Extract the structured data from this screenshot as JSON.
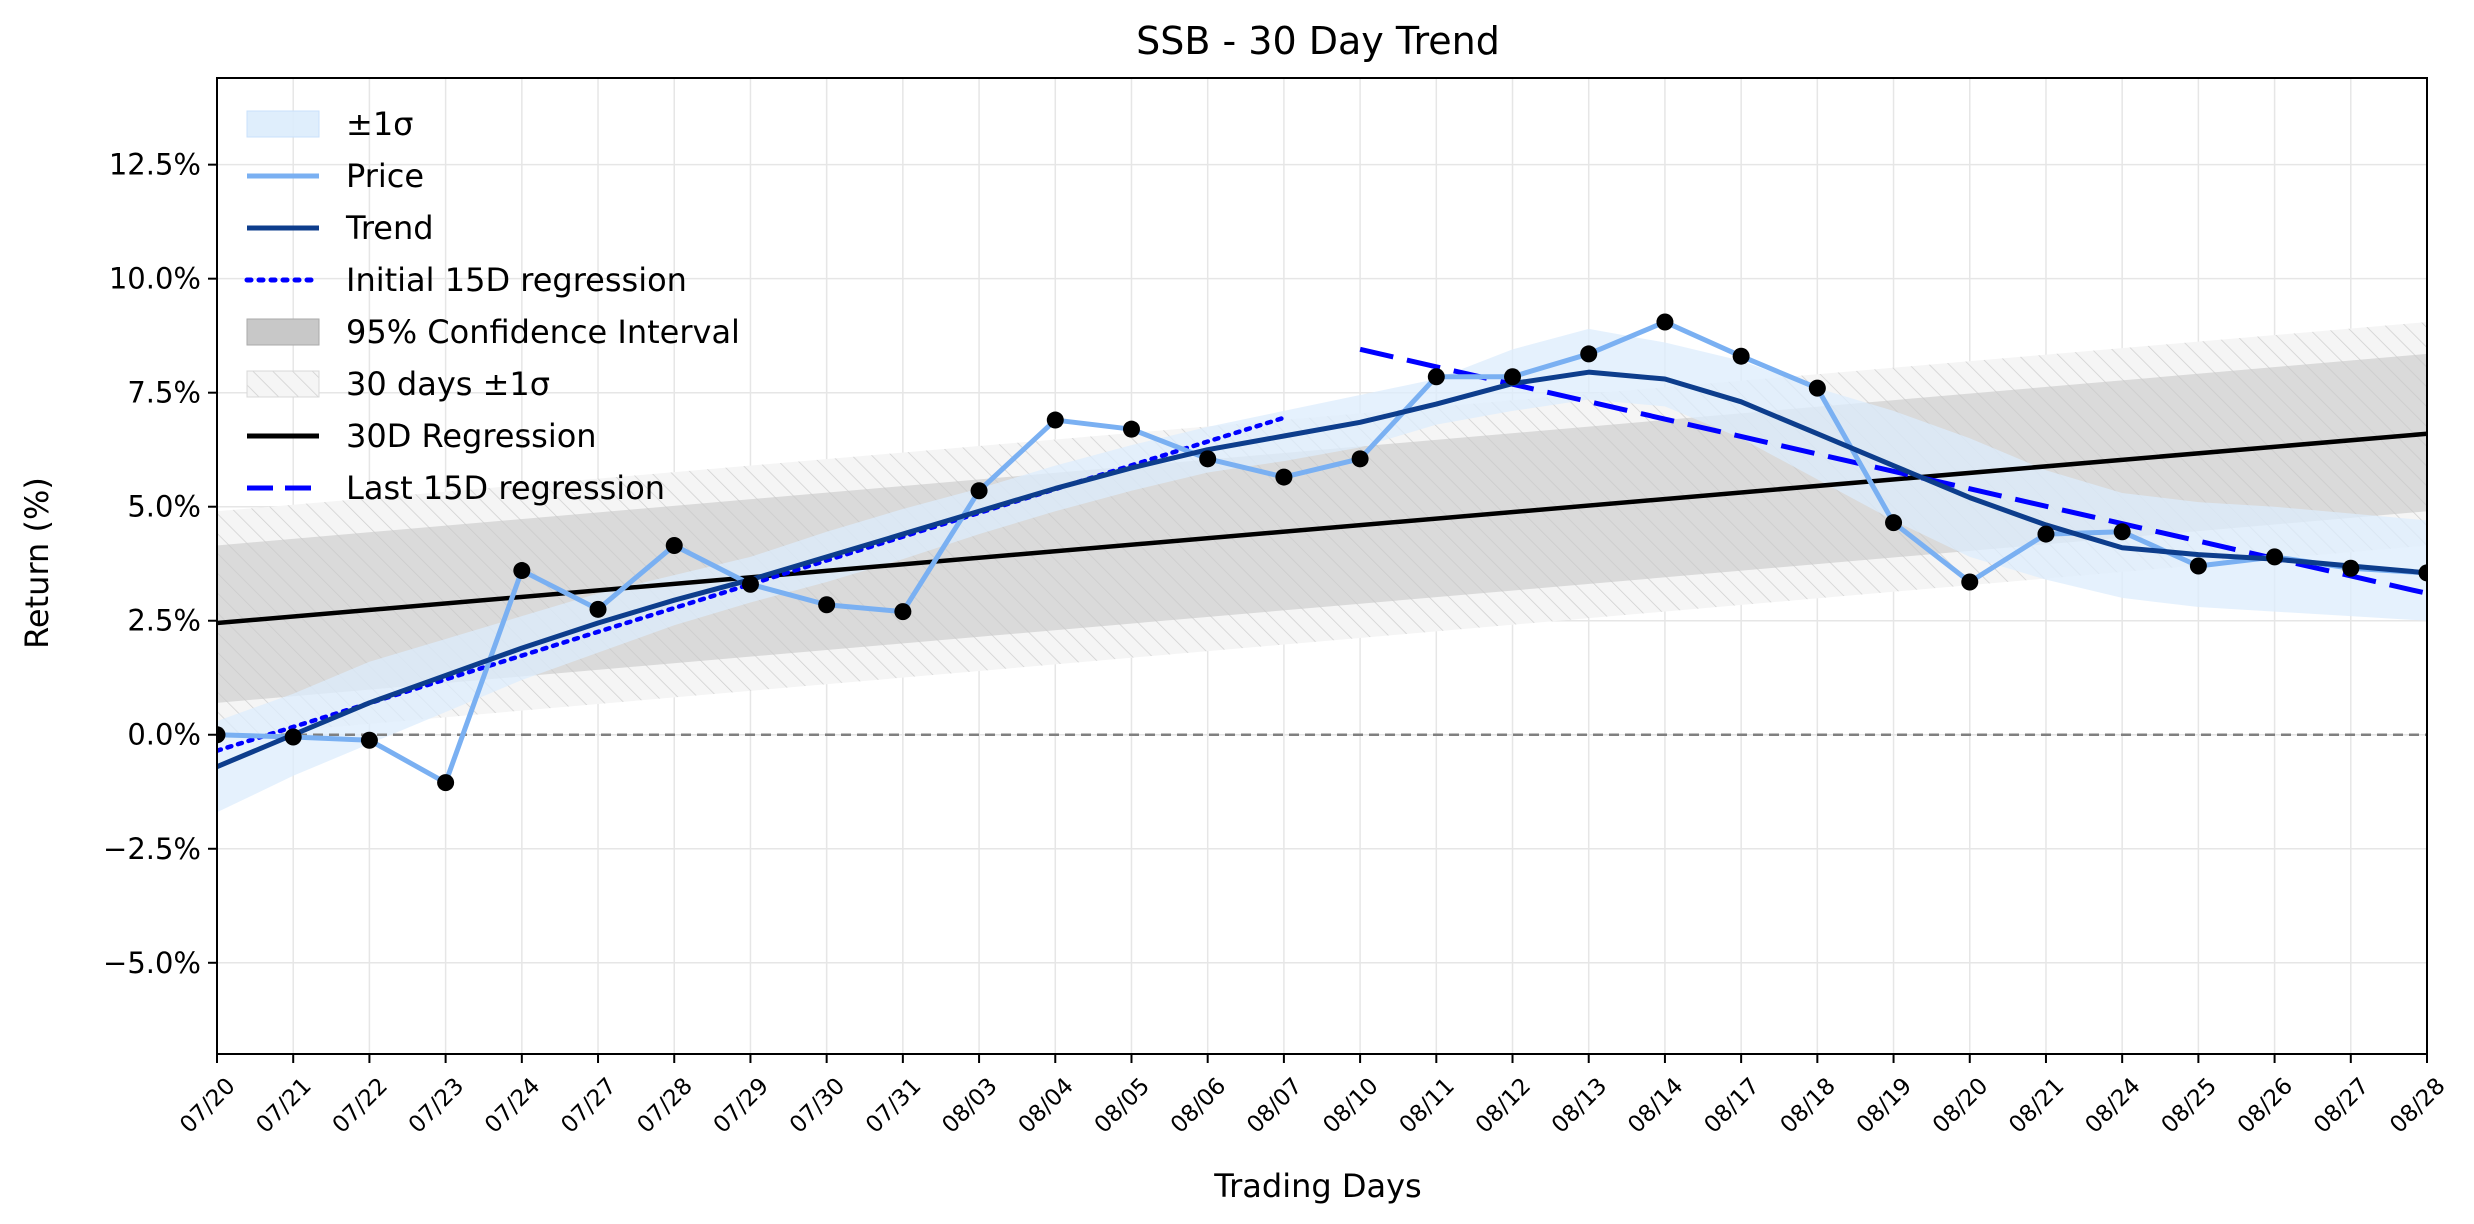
{
  "chart_data": {
    "type": "line",
    "title": "SSB - 30 Day Trend",
    "xlabel": "Trading Days",
    "ylabel": "Return (%)",
    "ylim": [
      -7.0,
      14.4
    ],
    "yticks": [
      -5.0,
      -2.5,
      0.0,
      2.5,
      5.0,
      7.5,
      10.0,
      12.5
    ],
    "ytick_labels": [
      "−5.0%",
      "−2.5%",
      "0.0%",
      "2.5%",
      "5.0%",
      "7.5%",
      "10.0%",
      "12.5%"
    ],
    "categories": [
      "07/20",
      "07/21",
      "07/22",
      "07/23",
      "07/24",
      "07/27",
      "07/28",
      "07/29",
      "07/30",
      "07/31",
      "08/03",
      "08/04",
      "08/05",
      "08/06",
      "08/07",
      "08/10",
      "08/11",
      "08/12",
      "08/13",
      "08/14",
      "08/17",
      "08/18",
      "08/19",
      "08/20",
      "08/21",
      "08/24",
      "08/25",
      "08/26",
      "08/27",
      "08/28"
    ],
    "grid": true,
    "legend_position": "top-left",
    "zero_line": {
      "value": 0.0,
      "style": "dashed",
      "color": "#808080"
    },
    "series": [
      {
        "name": "Price",
        "type": "line",
        "color": "#7ab0f2",
        "markers": true,
        "marker_color": "#000000",
        "values": [
          0.0,
          -0.05,
          -0.12,
          -1.05,
          3.6,
          2.75,
          4.15,
          3.3,
          2.85,
          2.7,
          5.35,
          6.9,
          6.7,
          6.05,
          5.65,
          6.05,
          7.85,
          7.85,
          8.35,
          9.05,
          8.3,
          7.6,
          4.65,
          3.35,
          4.4,
          4.45,
          3.7,
          3.9,
          3.65,
          3.55
        ]
      },
      {
        "name": "Trend",
        "type": "line",
        "color": "#0d3d8c",
        "values": [
          -0.7,
          0.0,
          0.7,
          1.3,
          1.9,
          2.45,
          2.95,
          3.4,
          3.9,
          4.4,
          4.9,
          5.4,
          5.85,
          6.25,
          6.55,
          6.85,
          7.25,
          7.7,
          7.95,
          7.8,
          7.3,
          6.6,
          5.9,
          5.2,
          4.6,
          4.1,
          3.95,
          3.85,
          3.7,
          3.55
        ]
      },
      {
        "name": "±1σ",
        "type": "band",
        "color": "#dcecfc",
        "lower": [
          -1.7,
          -0.9,
          -0.2,
          0.5,
          1.2,
          1.8,
          2.4,
          2.9,
          3.35,
          3.85,
          4.4,
          4.9,
          5.35,
          5.75,
          6.0,
          6.3,
          6.8,
          7.1,
          7.35,
          7.2,
          6.5,
          5.6,
          4.7,
          3.9,
          3.4,
          3.0,
          2.8,
          2.7,
          2.6,
          2.5
        ],
        "upper": [
          0.3,
          0.9,
          1.6,
          2.1,
          2.6,
          3.1,
          3.5,
          3.9,
          4.45,
          4.95,
          5.4,
          5.9,
          6.35,
          6.75,
          7.1,
          7.45,
          7.8,
          8.45,
          8.9,
          8.6,
          8.2,
          7.6,
          7.1,
          6.5,
          5.8,
          5.3,
          5.1,
          5.0,
          4.85,
          4.7
        ]
      },
      {
        "name": "Initial 15D regression",
        "type": "line",
        "style": "dotted",
        "color": "#0000ff",
        "x_start": "07/20",
        "x_end": "08/07",
        "y_start": -0.35,
        "y_end": 6.95
      },
      {
        "name": "95% Confidence Interval",
        "type": "band",
        "color": "#c8c8c8",
        "x_start": "07/20",
        "x_end": "08/28",
        "lower_start": 0.7,
        "lower_end": 4.9,
        "upper_start": 4.15,
        "upper_end": 8.35
      },
      {
        "name": "30 days ±1σ",
        "type": "band",
        "style": "hatched",
        "color": "#e0e0e0",
        "x_start": "07/20",
        "x_end": "08/28",
        "lower_start": -0.05,
        "lower_end": 4.15,
        "upper_start": 4.9,
        "upper_end": 9.05
      },
      {
        "name": "30D Regression",
        "type": "line",
        "color": "#000000",
        "x_start": "07/20",
        "x_end": "08/28",
        "y_start": 2.45,
        "y_end": 6.6
      },
      {
        "name": "Last 15D regression",
        "type": "line",
        "style": "dashed",
        "color": "#0000ff",
        "x_start": "08/10",
        "x_end": "08/28",
        "y_start": 8.45,
        "y_end": 3.1
      }
    ]
  }
}
